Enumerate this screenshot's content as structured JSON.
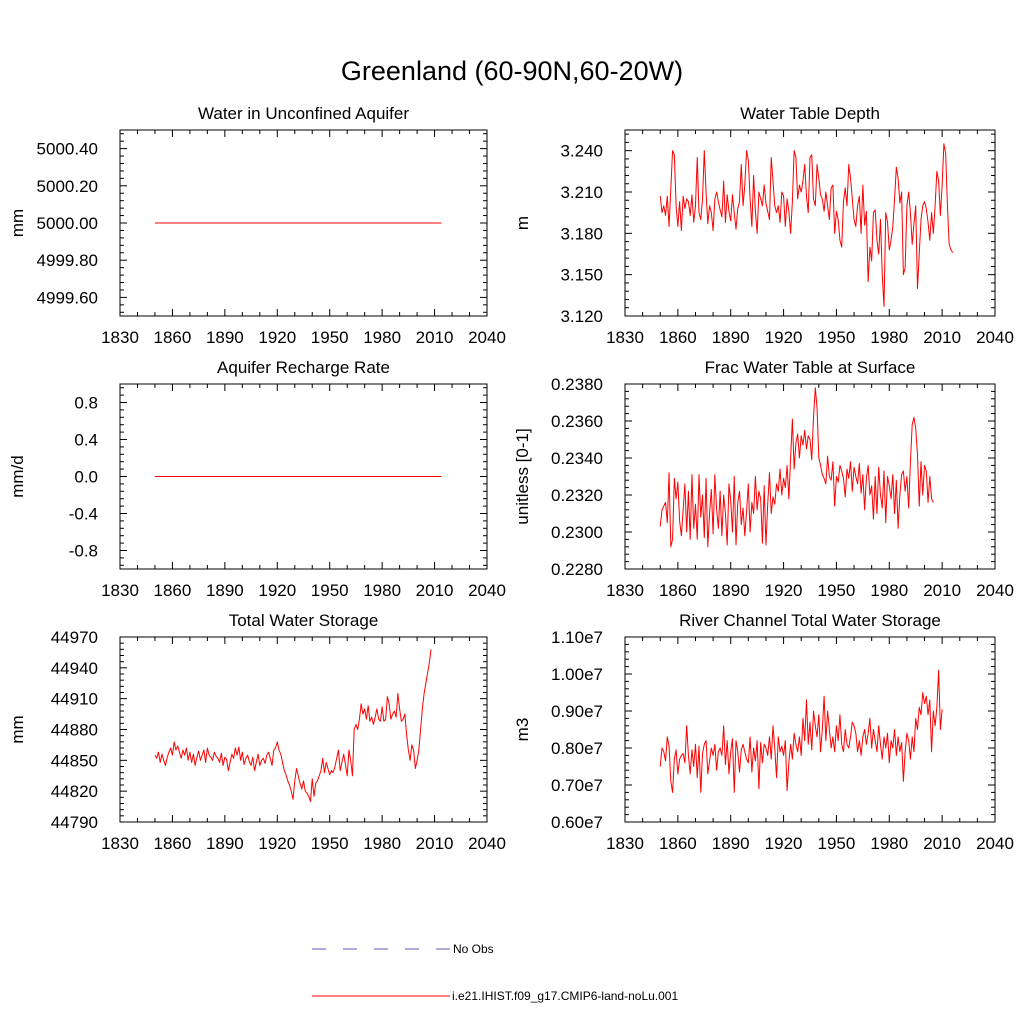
{
  "figure": {
    "title": "Greenland (60-90N,60-20W)"
  },
  "colors": {
    "series": "#ff0000",
    "no_obs": "#5a5ab4",
    "axis": "#000000"
  },
  "legend": {
    "entries": [
      {
        "label": "No Obs",
        "style": "dashed",
        "color": "#5a5ab4"
      },
      {
        "label": "i.e21.IHIST.f09_g17.CMIP6-land-noLu.001",
        "style": "solid",
        "color": "#ff0000"
      }
    ]
  },
  "chart_data": [
    {
      "type": "line",
      "title": "Water in Unconfined Aquifer",
      "ylabel": "mm",
      "xlim": [
        1830,
        2040
      ],
      "xticks": [
        "1830",
        "1860",
        "1890",
        "1920",
        "1950",
        "1980",
        "2010",
        "2040"
      ],
      "ylim": [
        4999.5,
        5000.5
      ],
      "yticks": [
        "4999.60",
        "4999.80",
        "5000.00",
        "5000.20",
        "5000.40"
      ],
      "series": [
        {
          "x_start": 1850,
          "x_end": 2014,
          "x_step": 1,
          "y_const": 5000.0
        }
      ]
    },
    {
      "type": "line",
      "title": "Water Table Depth",
      "ylabel": "m",
      "xlim": [
        1830,
        2040
      ],
      "xticks": [
        "1830",
        "1860",
        "1890",
        "1920",
        "1950",
        "1980",
        "2010",
        "2040"
      ],
      "ylim": [
        3.12,
        3.255
      ],
      "yticks": [
        "3.120",
        "3.150",
        "3.180",
        "3.210",
        "3.240"
      ],
      "series": [
        {
          "x_start": 1850,
          "x_end": 2014,
          "x_step": 1,
          "y": [
            3.207,
            3.195,
            3.2,
            3.193,
            3.207,
            3.185,
            3.212,
            3.24,
            3.237,
            3.2,
            3.185,
            3.203,
            3.182,
            3.207,
            3.198,
            3.205,
            3.203,
            3.193,
            3.208,
            3.188,
            3.2,
            3.235,
            3.195,
            3.19,
            3.205,
            3.24,
            3.21,
            3.187,
            3.2,
            3.195,
            3.182,
            3.205,
            3.21,
            3.203,
            3.197,
            3.192,
            3.218,
            3.188,
            3.208,
            3.196,
            3.189,
            3.208,
            3.195,
            3.183,
            3.198,
            3.203,
            3.23,
            3.2,
            3.215,
            3.24,
            3.233,
            3.205,
            3.185,
            3.222,
            3.196,
            3.18,
            3.21,
            3.205,
            3.2,
            3.215,
            3.202,
            3.196,
            3.19,
            3.235,
            3.218,
            3.2,
            3.195,
            3.2,
            3.188,
            3.21,
            3.207,
            3.185,
            3.205,
            3.196,
            3.18,
            3.203,
            3.24,
            3.235,
            3.205,
            3.215,
            3.21,
            3.218,
            3.23,
            3.207,
            3.195,
            3.235,
            3.237,
            3.205,
            3.2,
            3.23,
            3.22,
            3.208,
            3.205,
            3.196,
            3.21,
            3.2,
            3.19,
            3.213,
            3.215,
            3.18,
            3.196,
            3.19,
            3.175,
            3.17,
            3.203,
            3.213,
            3.2,
            3.23,
            3.22,
            3.205,
            3.19,
            3.185,
            3.2,
            3.207,
            3.18,
            3.215,
            3.186,
            3.196,
            3.145,
            3.17,
            3.16,
            3.195,
            3.197,
            3.175,
            3.165,
            3.19,
            3.15,
            3.127,
            3.195,
            3.188,
            3.168,
            3.175,
            3.185,
            3.205,
            3.228,
            3.22,
            3.202,
            3.21,
            3.15,
            3.155,
            3.2,
            3.21,
            3.195,
            3.172,
            3.187,
            3.2,
            3.14,
            3.165,
            3.19,
            3.2,
            3.203,
            3.198,
            3.188,
            3.175,
            3.195,
            3.18,
            3.2,
            3.225,
            3.218,
            3.193,
            3.215,
            3.245,
            3.238,
            3.2,
            3.172,
            3.168,
            3.166
          ]
        }
      ]
    },
    {
      "type": "line",
      "title": "Aquifer Recharge Rate",
      "ylabel": "mm/d",
      "xlim": [
        1830,
        2040
      ],
      "xticks": [
        "1830",
        "1860",
        "1890",
        "1920",
        "1950",
        "1980",
        "2010",
        "2040"
      ],
      "ylim": [
        -1.0,
        1.0
      ],
      "yticks": [
        "-0.8",
        "-0.4",
        "0.0",
        "0.4",
        "0.8"
      ],
      "series": [
        {
          "x_start": 1850,
          "x_end": 2014,
          "x_step": 1,
          "y_const": 0.0
        }
      ]
    },
    {
      "type": "line",
      "title": "Frac Water Table at Surface",
      "ylabel": "unitless [0-1]",
      "xlim": [
        1830,
        2040
      ],
      "xticks": [
        "1830",
        "1860",
        "1890",
        "1920",
        "1950",
        "1980",
        "2010",
        "2040"
      ],
      "ylim": [
        0.228,
        0.238
      ],
      "yticks": [
        "0.2280",
        "0.2300",
        "0.2320",
        "0.2340",
        "0.2360",
        "0.2380"
      ],
      "series": [
        {
          "x_start": 1850,
          "x_end": 2014,
          "x_step": 1,
          "y": [
            0.2303,
            0.2312,
            0.2314,
            0.2316,
            0.2305,
            0.2332,
            0.2292,
            0.2296,
            0.2329,
            0.2318,
            0.2327,
            0.2306,
            0.2298,
            0.2312,
            0.2326,
            0.23,
            0.2322,
            0.2296,
            0.2331,
            0.2302,
            0.2315,
            0.2296,
            0.2331,
            0.2308,
            0.232,
            0.2297,
            0.2329,
            0.2292,
            0.231,
            0.2323,
            0.2299,
            0.2331,
            0.2312,
            0.2302,
            0.2322,
            0.2298,
            0.232,
            0.231,
            0.2293,
            0.2326,
            0.2317,
            0.23,
            0.233,
            0.2293,
            0.2316,
            0.2322,
            0.2304,
            0.2313,
            0.2298,
            0.2311,
            0.2326,
            0.23,
            0.2316,
            0.231,
            0.233,
            0.2312,
            0.2322,
            0.2318,
            0.2294,
            0.2325,
            0.2293,
            0.2315,
            0.2332,
            0.231,
            0.2319,
            0.2315,
            0.2326,
            0.2322,
            0.2334,
            0.232,
            0.2329,
            0.2324,
            0.2336,
            0.2318,
            0.234,
            0.2361,
            0.2334,
            0.2348,
            0.2353,
            0.234,
            0.2352,
            0.2347,
            0.2355,
            0.2345,
            0.2352,
            0.235,
            0.2339,
            0.2362,
            0.2378,
            0.2367,
            0.234,
            0.2336,
            0.2331,
            0.2329,
            0.2326,
            0.2341,
            0.233,
            0.2328,
            0.2338,
            0.2314,
            0.233,
            0.2327,
            0.2336,
            0.2333,
            0.2329,
            0.2319,
            0.2334,
            0.2329,
            0.2338,
            0.2322,
            0.2335,
            0.233,
            0.2326,
            0.2337,
            0.2321,
            0.2331,
            0.2312,
            0.2329,
            0.2336,
            0.232,
            0.2325,
            0.2307,
            0.233,
            0.231,
            0.2335,
            0.232,
            0.2313,
            0.2333,
            0.2305,
            0.233,
            0.2325,
            0.2318,
            0.2331,
            0.231,
            0.2328,
            0.2302,
            0.232,
            0.2331,
            0.2333,
            0.2322,
            0.233,
            0.2313,
            0.2338,
            0.2358,
            0.2362,
            0.2356,
            0.2342,
            0.2314,
            0.2338,
            0.232,
            0.2336,
            0.2333,
            0.2316,
            0.233,
            0.2318,
            0.2316
          ]
        }
      ]
    },
    {
      "type": "line",
      "title": "Total Water Storage",
      "ylabel": "mm",
      "xlim": [
        1830,
        2040
      ],
      "xticks": [
        "1830",
        "1860",
        "1890",
        "1920",
        "1950",
        "1980",
        "2010",
        "2040"
      ],
      "ylim": [
        44790,
        44970
      ],
      "yticks": [
        "44790",
        "44820",
        "44850",
        "44880",
        "44910",
        "44940",
        "44970"
      ],
      "series": [
        {
          "x_start": 1850,
          "x_end": 2014,
          "x_step": 1,
          "y": [
            44855,
            44852,
            44858,
            44848,
            44856,
            44850,
            44845,
            44853,
            44858,
            44862,
            44855,
            44868,
            44860,
            44864,
            44858,
            44852,
            44860,
            44855,
            44862,
            44850,
            44858,
            44848,
            44856,
            44845,
            44853,
            44859,
            44850,
            44855,
            44860,
            44848,
            44862,
            44855,
            44853,
            44850,
            44858,
            44854,
            44852,
            44848,
            44857,
            44845,
            44853,
            44851,
            44840,
            44848,
            44856,
            44852,
            44862,
            44855,
            44863,
            44850,
            44858,
            44846,
            44852,
            44855,
            44849,
            44845,
            44853,
            44840,
            44848,
            44856,
            44845,
            44850,
            44852,
            44847,
            44855,
            44858,
            44852,
            44845,
            44860,
            44862,
            44868,
            44860,
            44856,
            44848,
            44840,
            44836,
            44830,
            44826,
            44820,
            44812,
            44830,
            44842,
            44835,
            44828,
            44822,
            44830,
            44820,
            44818,
            44815,
            44810,
            44832,
            44815,
            44828,
            44830,
            44835,
            44840,
            44852,
            44838,
            44848,
            44842,
            44836,
            44840,
            44838,
            44844,
            44852,
            44860,
            44840,
            44848,
            44856,
            44846,
            44835,
            44860,
            44850,
            44835,
            44880,
            44885,
            44880,
            44890,
            44905,
            44895,
            44900,
            44890,
            44903,
            44888,
            44892,
            44885,
            44892,
            44900,
            44890,
            44888,
            44902,
            44888,
            44890,
            44912,
            44905,
            44890,
            44895,
            44898,
            44892,
            44915,
            44900,
            44888,
            44890,
            44895,
            44875,
            44860,
            44850,
            44865,
            44860,
            44842,
            44850,
            44860,
            44880,
            44900,
            44915,
            44925,
            44935,
            44945,
            44958
          ]
        }
      ]
    },
    {
      "type": "line",
      "title": "River Channel Total Water Storage",
      "ylabel": "m3",
      "xlim": [
        1830,
        2040
      ],
      "xticks": [
        "1830",
        "1860",
        "1890",
        "1920",
        "1950",
        "1980",
        "2010",
        "2040"
      ],
      "ylim": [
        6000000,
        11000000
      ],
      "yticks": [
        "0.60e7",
        "0.70e7",
        "0.80e7",
        "0.90e7",
        "1.00e7",
        "1.10e7"
      ],
      "series": [
        {
          "x_start": 1850,
          "x_end": 2014,
          "x_step": 1,
          "y": [
            7500000,
            8000000,
            7900000,
            7650000,
            8300000,
            8050000,
            7100000,
            6800000,
            7700000,
            7950000,
            7300000,
            7700000,
            7800000,
            7850000,
            7600000,
            8600000,
            7800000,
            7300000,
            7950000,
            7500000,
            8100000,
            7200000,
            8050000,
            6800000,
            7850000,
            8100000,
            8200000,
            7300000,
            7650000,
            8000000,
            7800000,
            8100000,
            7400000,
            7900000,
            8000000,
            7800000,
            8600000,
            7550000,
            8200000,
            7300000,
            7900000,
            8250000,
            6800000,
            8200000,
            7900000,
            7350000,
            7950000,
            8100000,
            7900000,
            7700000,
            7600000,
            8300000,
            7350000,
            8000000,
            7650000,
            8200000,
            6900000,
            8150000,
            7600000,
            8100000,
            8000000,
            7800000,
            8300000,
            7700000,
            8600000,
            8000000,
            7200000,
            8300000,
            7900000,
            8050000,
            7800000,
            8200000,
            6850000,
            7600000,
            8100000,
            7700000,
            8400000,
            8100000,
            7900000,
            8300000,
            7800000,
            8800000,
            8200000,
            9300000,
            8100000,
            8700000,
            7950000,
            9000000,
            8600000,
            8300000,
            8900000,
            7900000,
            8500000,
            9400000,
            8200000,
            9000000,
            8500000,
            8000000,
            8300000,
            7900000,
            8600000,
            8200000,
            8900000,
            8100000,
            7900000,
            8500000,
            8100000,
            8000000,
            8300000,
            8700000,
            8600000,
            8400000,
            7900000,
            8200000,
            7800000,
            8300000,
            8500000,
            8100000,
            8400000,
            8800000,
            8000000,
            8500000,
            8200000,
            7900000,
            8600000,
            8100000,
            7700000,
            8300000,
            8000000,
            8400000,
            7600000,
            8200000,
            8000000,
            8500000,
            7800000,
            8300000,
            7900000,
            8150000,
            7100000,
            7900000,
            8400000,
            8200000,
            7700000,
            8300000,
            7900000,
            8800000,
            8500000,
            9100000,
            8900000,
            9500000,
            9200000,
            9400000,
            8900000,
            9300000,
            7900000,
            9000000,
            8600000,
            9100000,
            10100000,
            8500000,
            9050000
          ]
        }
      ]
    }
  ]
}
